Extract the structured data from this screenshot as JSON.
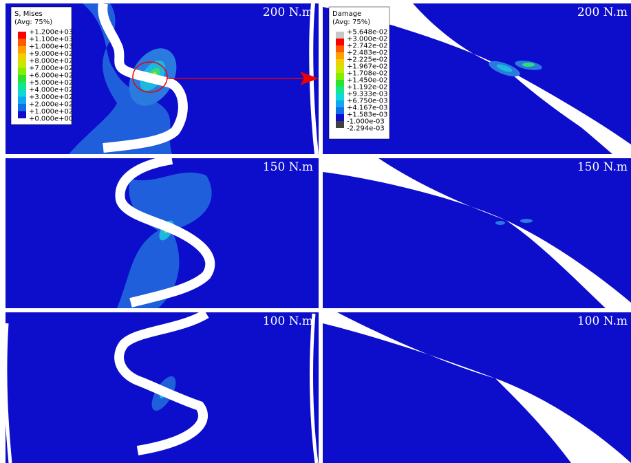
{
  "panels": [
    {
      "label": "200 N.m"
    },
    {
      "label": "200 N.m"
    },
    {
      "label": "150 N.m"
    },
    {
      "label": "150 N.m"
    },
    {
      "label": "100 N.m"
    },
    {
      "label": "100 N.m"
    }
  ],
  "legends": [
    {
      "title": "S, Mises",
      "subtitle": "(Avg: 75%)",
      "entries": [
        "+1.200e+03",
        "+1.100e+03",
        "+1.000e+03",
        "+9.000e+02",
        "+8.000e+02",
        "+7.000e+02",
        "+6.000e+02",
        "+5.000e+02",
        "+4.000e+02",
        "+3.000e+02",
        "+2.000e+02",
        "+1.000e+02",
        "+0.000e+00"
      ]
    },
    {
      "title": "Damage",
      "subtitle": "(Avg: 75%)",
      "entries": [
        "+5.648e-02",
        "+3.000e-02",
        "+2.742e-02",
        "+2.483e-02",
        "+2.225e-02",
        "+1.967e-02",
        "+1.708e-02",
        "+1.450e-02",
        "+1.192e-02",
        "+9.333e-03",
        "+6.750e-03",
        "+4.167e-03",
        "+1.583e-03",
        "-1.000e-03",
        "-2.294e-03"
      ]
    }
  ]
}
